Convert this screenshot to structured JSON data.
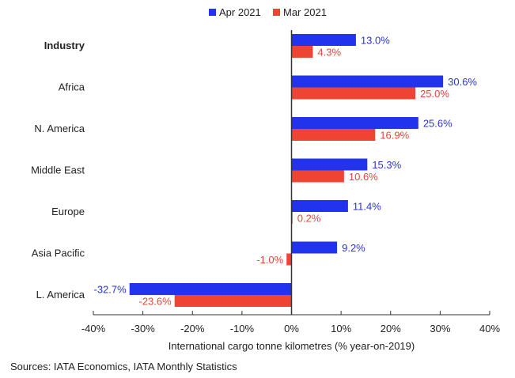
{
  "chart_data": {
    "type": "bar",
    "orientation": "horizontal",
    "title": "",
    "categories": [
      "Industry",
      "Africa",
      "N. America",
      "Middle East",
      "Europe",
      "Asia Pacific",
      "L. America"
    ],
    "bold_categories": [
      "Industry"
    ],
    "series": [
      {
        "name": "Apr 2021",
        "color": "#2233ee",
        "label_color": "#2a35d6",
        "values": [
          13.0,
          30.6,
          25.6,
          15.3,
          11.4,
          9.2,
          -32.7
        ],
        "labels": [
          "13.0%",
          "30.6%",
          "25.6%",
          "15.3%",
          "11.4%",
          "9.2%",
          "-32.7%"
        ]
      },
      {
        "name": "Mar 2021",
        "color": "#ef4433",
        "label_color": "#e0473a",
        "values": [
          4.3,
          25.0,
          16.9,
          10.6,
          0.2,
          -1.0,
          -23.6
        ],
        "labels": [
          "4.3%",
          "25.0%",
          "16.9%",
          "10.6%",
          "0.2%",
          "-1.0%",
          "-23.6%"
        ]
      }
    ],
    "xlabel": "International cargo tonne kilometres (% year-on-2019)",
    "ylabel": "",
    "xlim": [
      -40,
      40
    ],
    "xticks": [
      -40,
      -30,
      -20,
      -10,
      0,
      10,
      20,
      30,
      40
    ],
    "xtick_labels": [
      "-40%",
      "-30%",
      "-20%",
      "-10%",
      "0%",
      "10%",
      "20%",
      "30%",
      "40%"
    ],
    "grid": false,
    "legend_position": "top-center"
  },
  "source_note": "Sources: IATA Economics, IATA Monthly Statistics"
}
